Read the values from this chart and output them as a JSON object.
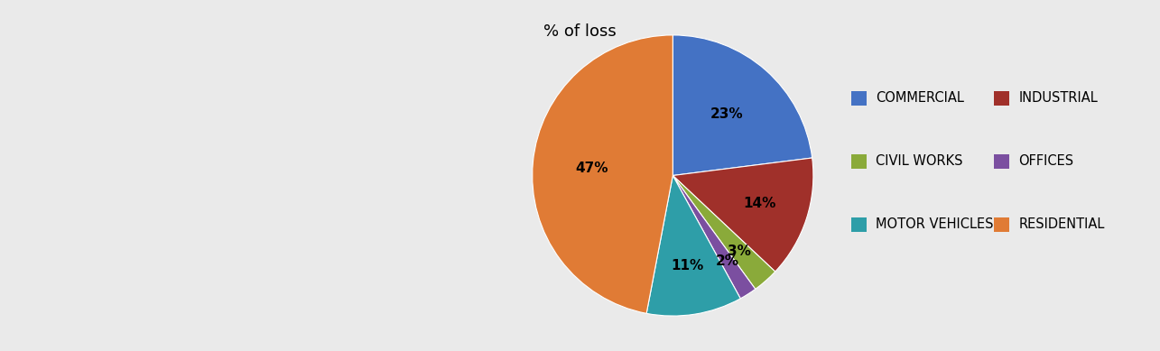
{
  "title": "% of loss",
  "slices": [
    {
      "label": "COMMERCIAL",
      "pct": 23,
      "color": "#4472C4"
    },
    {
      "label": "INDUSTRIAL",
      "pct": 14,
      "color": "#A0302A"
    },
    {
      "label": "CIVIL WORKS",
      "pct": 3,
      "color": "#8AAA3A"
    },
    {
      "label": "OFFICES",
      "pct": 2,
      "color": "#7B4FA0"
    },
    {
      "label": "MOTOR VEHICLES",
      "pct": 11,
      "color": "#2E9EA8"
    },
    {
      "label": "RESIDENTIAL",
      "pct": 47,
      "color": "#E07B35"
    }
  ],
  "legend_pairs": [
    [
      "COMMERCIAL",
      "INDUSTRIAL"
    ],
    [
      "CIVIL WORKS",
      "OFFICES"
    ],
    [
      "MOTOR VEHICLES",
      "RESIDENTIAL"
    ]
  ],
  "legend_colors": {
    "COMMERCIAL": "#4472C4",
    "INDUSTRIAL": "#A0302A",
    "CIVIL WORKS": "#8AAA3A",
    "OFFICES": "#7B4FA0",
    "MOTOR VEHICLES": "#2E9EA8",
    "RESIDENTIAL": "#E07B35"
  },
  "bg_color": "#EAEAEA",
  "title_fontsize": 13,
  "label_fontsize": 11,
  "legend_fontsize": 10.5
}
